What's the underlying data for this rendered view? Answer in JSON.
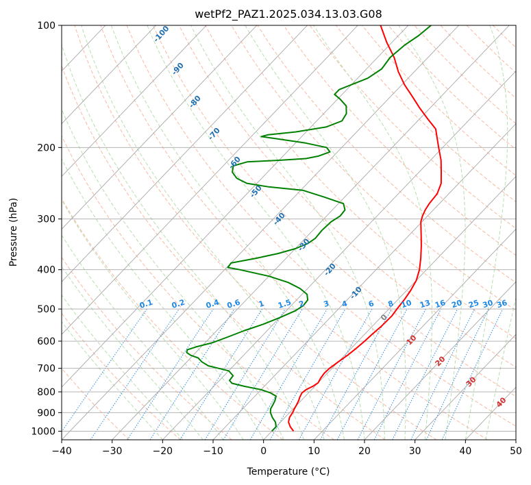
{
  "chart_data": {
    "type": "line",
    "title": "wetPf2_PAZ1.2025.034.13.03.G08",
    "xlabel": "Temperature (°C)",
    "ylabel": "Pressure (hPa)",
    "xlim": [
      -40,
      50
    ],
    "ylim": [
      1050,
      100
    ],
    "y_scale": "log",
    "grid": true,
    "x_ticks": [
      -40,
      -30,
      -20,
      -10,
      0,
      10,
      20,
      30,
      40,
      50
    ],
    "y_ticks": [
      1000,
      900,
      800,
      700,
      600,
      500,
      400,
      300,
      200,
      100
    ],
    "dry_adiabat_labels": [
      "-100",
      "-90",
      "-80",
      "-70",
      "-60",
      "-50",
      "-40",
      "-30",
      "-20",
      "-10"
    ],
    "mixing_ratio_labels": [
      "0.1",
      "0.2",
      "0.4",
      "0.6",
      "1",
      "1.5",
      "2",
      "3",
      "4",
      "6",
      "8",
      "10",
      "13",
      "16",
      "20",
      "25",
      "30",
      "36"
    ],
    "moist_adiabat_labels": [
      "0",
      "10",
      "20",
      "30",
      "40"
    ],
    "series": [
      {
        "color": "#ff0000",
        "points": [
          [
            1000,
            4.3
          ],
          [
            975,
            2.8
          ],
          [
            950,
            1.6
          ],
          [
            925,
            0.9
          ],
          [
            900,
            0.6
          ],
          [
            880,
            0.2
          ],
          [
            860,
            -0.1
          ],
          [
            840,
            -0.5
          ],
          [
            825,
            -0.9
          ],
          [
            805,
            -1.3
          ],
          [
            790,
            -1.1
          ],
          [
            775,
            -0.4
          ],
          [
            760,
            0.0
          ],
          [
            740,
            -0.4
          ],
          [
            720,
            -0.6
          ],
          [
            700,
            -0.5
          ],
          [
            675,
            0.0
          ],
          [
            650,
            0.6
          ],
          [
            625,
            1.0
          ],
          [
            600,
            1.3
          ],
          [
            575,
            1.5
          ],
          [
            550,
            1.8
          ],
          [
            520,
            1.9
          ],
          [
            500,
            1.6
          ],
          [
            475,
            1.3
          ],
          [
            450,
            0.8
          ],
          [
            425,
            0.0
          ],
          [
            400,
            -1.4
          ],
          [
            375,
            -3.3
          ],
          [
            350,
            -5.5
          ],
          [
            330,
            -7.5
          ],
          [
            315,
            -9.1
          ],
          [
            305,
            -10.2
          ],
          [
            295,
            -11.0
          ],
          [
            285,
            -11.6
          ],
          [
            275,
            -12.0
          ],
          [
            260,
            -12.3
          ],
          [
            245,
            -13.5
          ],
          [
            230,
            -15.6
          ],
          [
            215,
            -17.9
          ],
          [
            200,
            -20.8
          ],
          [
            190,
            -22.8
          ],
          [
            180,
            -24.9
          ],
          [
            170,
            -28.4
          ],
          [
            160,
            -32.0
          ],
          [
            150,
            -35.6
          ],
          [
            140,
            -39.5
          ],
          [
            130,
            -43.2
          ],
          [
            120,
            -46.7
          ],
          [
            110,
            -51.1
          ],
          [
            100,
            -55.5
          ]
        ]
      },
      {
        "color": "#008000",
        "points": [
          [
            1000,
            0.0
          ],
          [
            975,
            0.0
          ],
          [
            950,
            -1.0
          ],
          [
            925,
            -2.5
          ],
          [
            900,
            -3.8
          ],
          [
            880,
            -4.5
          ],
          [
            860,
            -4.8
          ],
          [
            840,
            -5.2
          ],
          [
            820,
            -5.8
          ],
          [
            805,
            -7.5
          ],
          [
            790,
            -10.0
          ],
          [
            775,
            -14.0
          ],
          [
            762,
            -17.0
          ],
          [
            750,
            -18.0
          ],
          [
            730,
            -18.2
          ],
          [
            710,
            -20.0
          ],
          [
            700,
            -22.5
          ],
          [
            690,
            -25.0
          ],
          [
            675,
            -27.0
          ],
          [
            660,
            -28.5
          ],
          [
            650,
            -30.5
          ],
          [
            640,
            -31.8
          ],
          [
            630,
            -32.2
          ],
          [
            620,
            -31.0
          ],
          [
            605,
            -28.5
          ],
          [
            585,
            -26.5
          ],
          [
            565,
            -24.5
          ],
          [
            545,
            -22.0
          ],
          [
            525,
            -20.0
          ],
          [
            505,
            -18.2
          ],
          [
            490,
            -17.6
          ],
          [
            475,
            -17.8
          ],
          [
            460,
            -19.0
          ],
          [
            445,
            -21.5
          ],
          [
            430,
            -25.0
          ],
          [
            415,
            -30.0
          ],
          [
            400,
            -37.0
          ],
          [
            395,
            -39.8
          ],
          [
            385,
            -40.0
          ],
          [
            375,
            -36.0
          ],
          [
            365,
            -32.5
          ],
          [
            355,
            -30.0
          ],
          [
            345,
            -28.5
          ],
          [
            335,
            -28.0
          ],
          [
            320,
            -28.2
          ],
          [
            305,
            -28.0
          ],
          [
            295,
            -27.3
          ],
          [
            285,
            -27.5
          ],
          [
            275,
            -29.0
          ],
          [
            265,
            -34.0
          ],
          [
            255,
            -39.5
          ],
          [
            250,
            -47.0
          ],
          [
            245,
            -52.0
          ],
          [
            238,
            -55.0
          ],
          [
            230,
            -57.0
          ],
          [
            222,
            -58.0
          ],
          [
            217,
            -56.0
          ],
          [
            215,
            -50.0
          ],
          [
            213,
            -45.0
          ],
          [
            210,
            -43.0
          ],
          [
            205,
            -41.5
          ],
          [
            200,
            -43.0
          ],
          [
            195,
            -48.0
          ],
          [
            190,
            -55.0
          ],
          [
            188,
            -58.0
          ],
          [
            186,
            -57.0
          ],
          [
            183,
            -52.0
          ],
          [
            178,
            -47.0
          ],
          [
            172,
            -45.0
          ],
          [
            165,
            -45.5
          ],
          [
            158,
            -47.0
          ],
          [
            152,
            -49.5
          ],
          [
            148,
            -51.5
          ],
          [
            144,
            -51.5
          ],
          [
            140,
            -50.0
          ],
          [
            135,
            -48.0
          ],
          [
            128,
            -47.0
          ],
          [
            120,
            -47.5
          ],
          [
            112,
            -47.0
          ],
          [
            106,
            -46.0
          ],
          [
            100,
            -45.5
          ]
        ]
      }
    ]
  }
}
